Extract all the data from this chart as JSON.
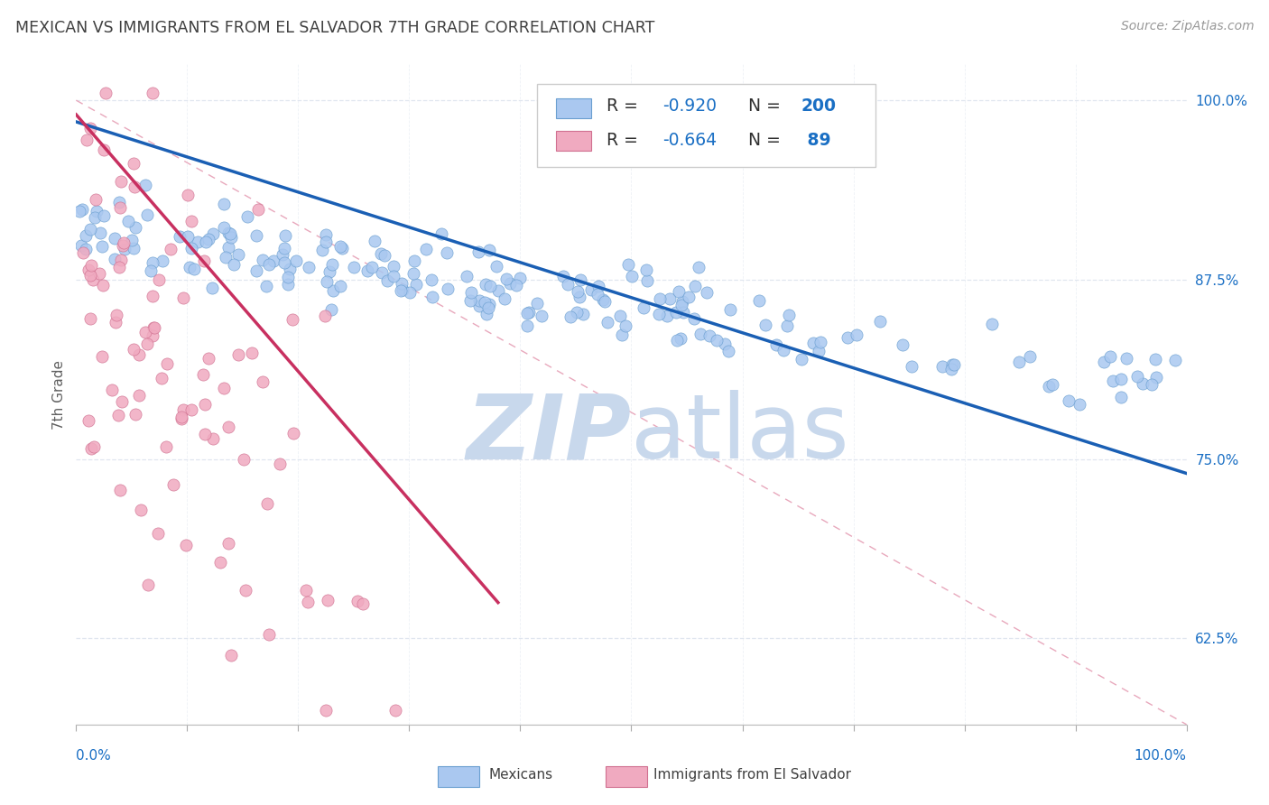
{
  "title": "MEXICAN VS IMMIGRANTS FROM EL SALVADOR 7TH GRADE CORRELATION CHART",
  "source": "Source: ZipAtlas.com",
  "ylabel": "7th Grade",
  "right_ytick_labels": [
    "100.0%",
    "87.5%",
    "75.0%",
    "62.5%"
  ],
  "right_ytick_positions": [
    1.0,
    0.875,
    0.75,
    0.625
  ],
  "blue_scatter_color": "#aac8f0",
  "blue_edge_color": "#6a9fd0",
  "blue_line_color": "#1a5fb4",
  "pink_scatter_color": "#f0aac0",
  "pink_edge_color": "#d07090",
  "pink_line_color": "#c83060",
  "diagonal_line_color": "#e8a8bc",
  "background_color": "#ffffff",
  "grid_color": "#dde4ee",
  "title_color": "#404040",
  "right_axis_color": "#1a6fc4",
  "watermark_zip_color": "#c8d8ec",
  "watermark_atlas_color": "#c8d8ec",
  "seed": 7,
  "xlim": [
    0.0,
    1.0
  ],
  "ylim": [
    0.565,
    1.025
  ],
  "blue_N": 200,
  "blue_R": -0.92,
  "pink_N": 89,
  "pink_R": -0.664,
  "blue_line_x0": 0.0,
  "blue_line_y0": 0.985,
  "blue_line_x1": 1.0,
  "blue_line_y1": 0.74,
  "pink_line_x0": 0.0,
  "pink_line_y0": 0.99,
  "pink_line_x1": 0.38,
  "pink_line_y1": 0.65
}
